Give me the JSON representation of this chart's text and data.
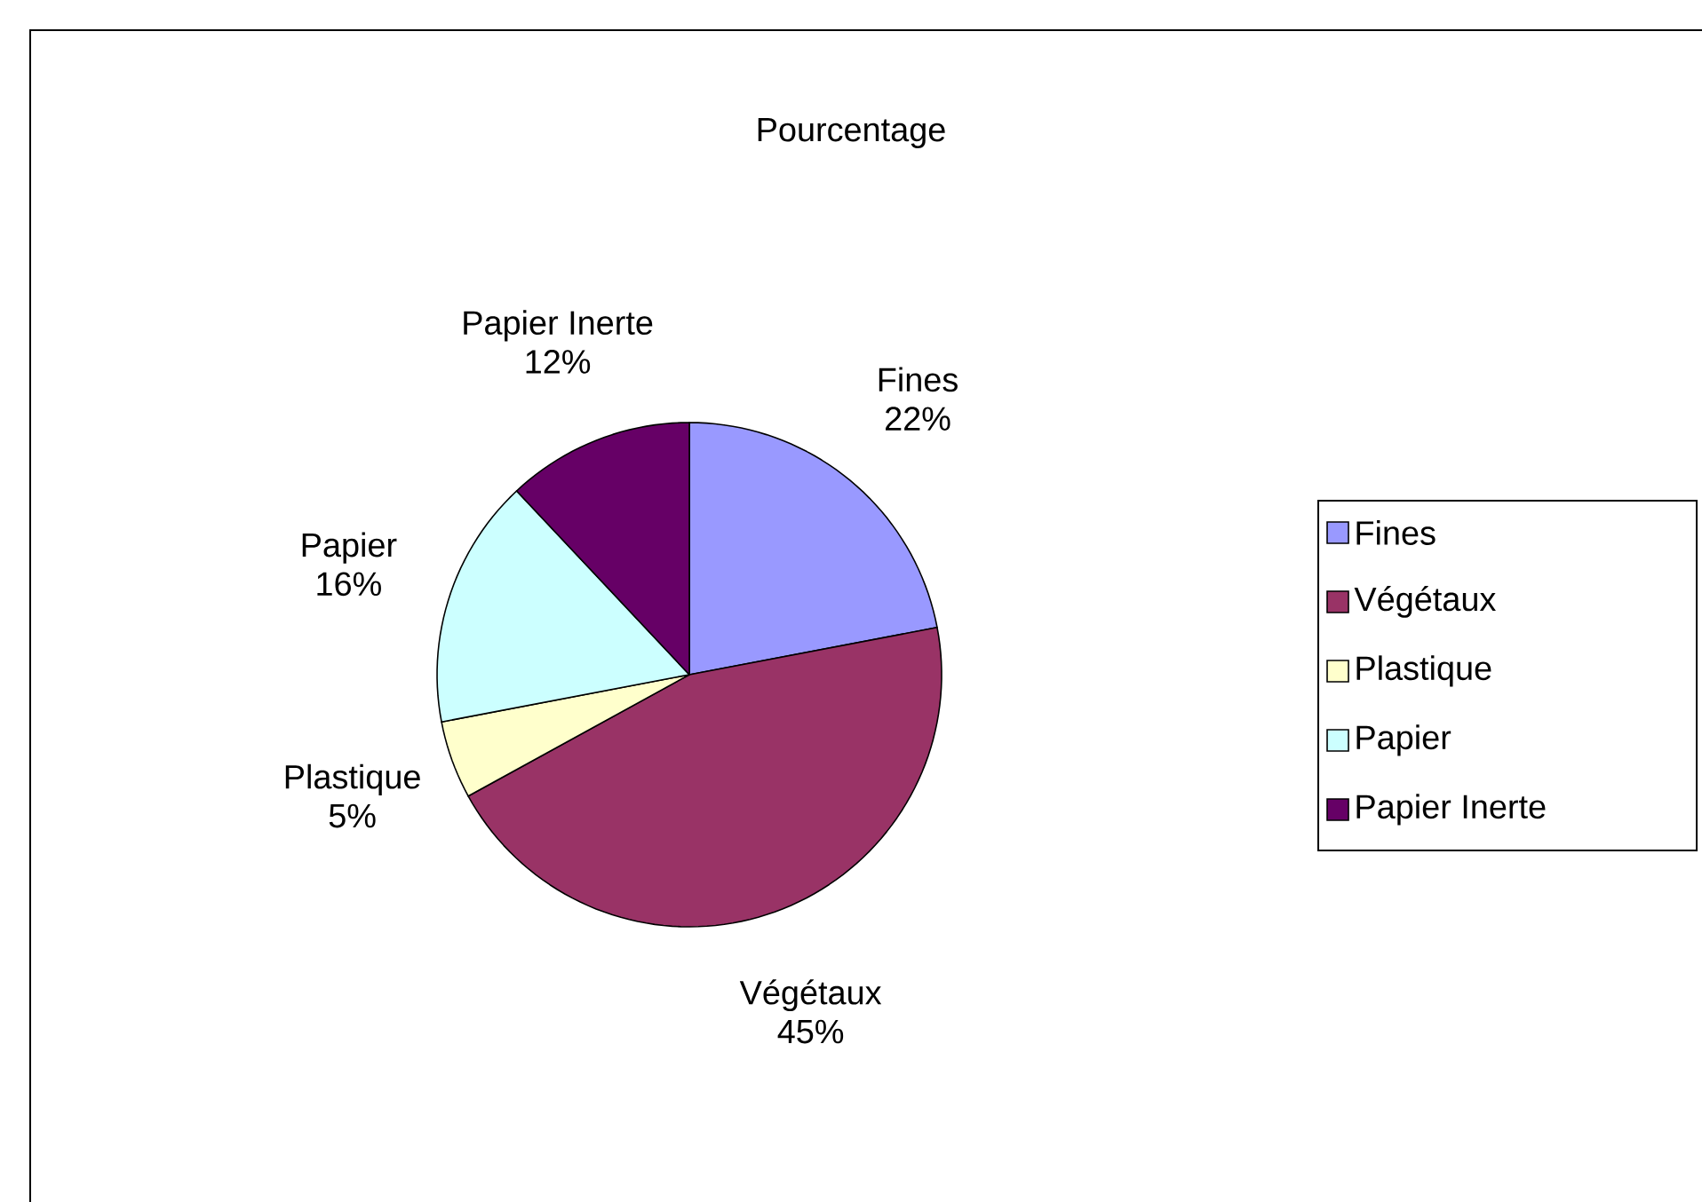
{
  "chart_data": {
    "type": "pie",
    "title": "Pourcentage",
    "categories": [
      "Fines",
      "Végétaux",
      "Plastique",
      "Papier",
      "Papier Inerte"
    ],
    "values": [
      22,
      45,
      5,
      16,
      12
    ],
    "value_labels": [
      "22%",
      "45%",
      "5%",
      "16%",
      "12%"
    ],
    "colors": [
      "#9999ff",
      "#993366",
      "#ffffcc",
      "#ccffff",
      "#660066"
    ],
    "legend": "right"
  }
}
